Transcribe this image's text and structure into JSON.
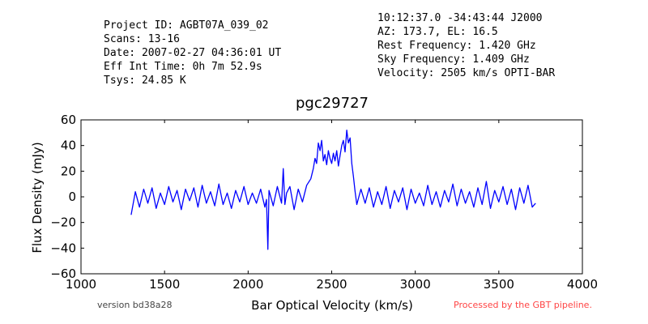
{
  "header": {
    "left": [
      "Project ID: AGBT07A_039_02",
      "Scans: 13-16",
      "Date: 2007-02-27 04:36:01 UT",
      "Eff Int Time: 0h 7m 52.9s",
      "Tsys: 24.85 K"
    ],
    "right": [
      "10:12:37.0 -34:43:44 J2000",
      "AZ: 173.7, EL: 16.5",
      "Rest Frequency:   1.420 GHz",
      "Sky Frequency:    1.409 GHz",
      "Velocity: 2505 km/s OPTI-BAR"
    ]
  },
  "footer": {
    "version": "version bd38a28",
    "pipeline": "Processed by the GBT pipeline.",
    "pipeline_color": "#ff4444"
  },
  "chart_data": {
    "type": "line",
    "title": "pgc29727",
    "xlabel": "Bar Optical Velocity (km/s)",
    "ylabel": "Flux Density (mJy)",
    "xlim": [
      1000,
      4000
    ],
    "ylim": [
      -60,
      60
    ],
    "xticks": [
      1000,
      1500,
      2000,
      2500,
      3000,
      3500,
      4000
    ],
    "yticks": [
      -60,
      -40,
      -20,
      0,
      20,
      40,
      60
    ],
    "grid": false,
    "line_color": "#0000ff",
    "series": [
      {
        "x": [
          1300,
          1325,
          1350,
          1375,
          1400,
          1425,
          1450,
          1475,
          1500,
          1525,
          1550,
          1575,
          1600,
          1625,
          1650,
          1675,
          1700,
          1725,
          1750,
          1775,
          1800,
          1825,
          1850,
          1875,
          1900,
          1925,
          1950,
          1975,
          2000,
          2025,
          2050,
          2075,
          2100,
          2110,
          2118,
          2125,
          2150,
          2175,
          2200,
          2210,
          2220,
          2230,
          2250,
          2275,
          2300,
          2325,
          2350,
          2375,
          2390,
          2400,
          2410,
          2420,
          2430,
          2440,
          2450,
          2460,
          2470,
          2480,
          2490,
          2500,
          2510,
          2520,
          2530,
          2540,
          2550,
          2560,
          2570,
          2580,
          2590,
          2600,
          2610,
          2620,
          2630,
          2640,
          2650,
          2675,
          2700,
          2725,
          2750,
          2775,
          2800,
          2825,
          2850,
          2875,
          2900,
          2925,
          2950,
          2975,
          3000,
          3025,
          3050,
          3075,
          3100,
          3125,
          3150,
          3175,
          3200,
          3225,
          3250,
          3275,
          3300,
          3325,
          3350,
          3375,
          3400,
          3425,
          3450,
          3475,
          3500,
          3525,
          3550,
          3575,
          3600,
          3625,
          3650,
          3675,
          3700,
          3720
        ],
        "y": [
          -14,
          4,
          -8,
          6,
          -5,
          7,
          -9,
          3,
          -6,
          8,
          -4,
          5,
          -10,
          6,
          -3,
          7,
          -8,
          9,
          -5,
          4,
          -7,
          10,
          -6,
          3,
          -9,
          5,
          -4,
          8,
          -6,
          3,
          -5,
          6,
          -8,
          -2,
          -41,
          5,
          -7,
          8,
          -5,
          22,
          -6,
          3,
          8,
          -10,
          6,
          -4,
          9,
          14,
          22,
          30,
          26,
          42,
          36,
          44,
          28,
          33,
          25,
          36,
          30,
          26,
          34,
          28,
          36,
          24,
          32,
          40,
          44,
          35,
          52,
          42,
          46,
          26,
          16,
          4,
          -6,
          6,
          -5,
          7,
          -8,
          4,
          -6,
          8,
          -9,
          5,
          -4,
          7,
          -10,
          6,
          -5,
          3,
          -7,
          9,
          -6,
          4,
          -8,
          5,
          -4,
          10,
          -7,
          6,
          -5,
          4,
          -8,
          7,
          -6,
          12,
          -9,
          5,
          -4,
          8,
          -6,
          6,
          -10,
          7,
          -5,
          9,
          -8,
          -5
        ]
      }
    ]
  }
}
